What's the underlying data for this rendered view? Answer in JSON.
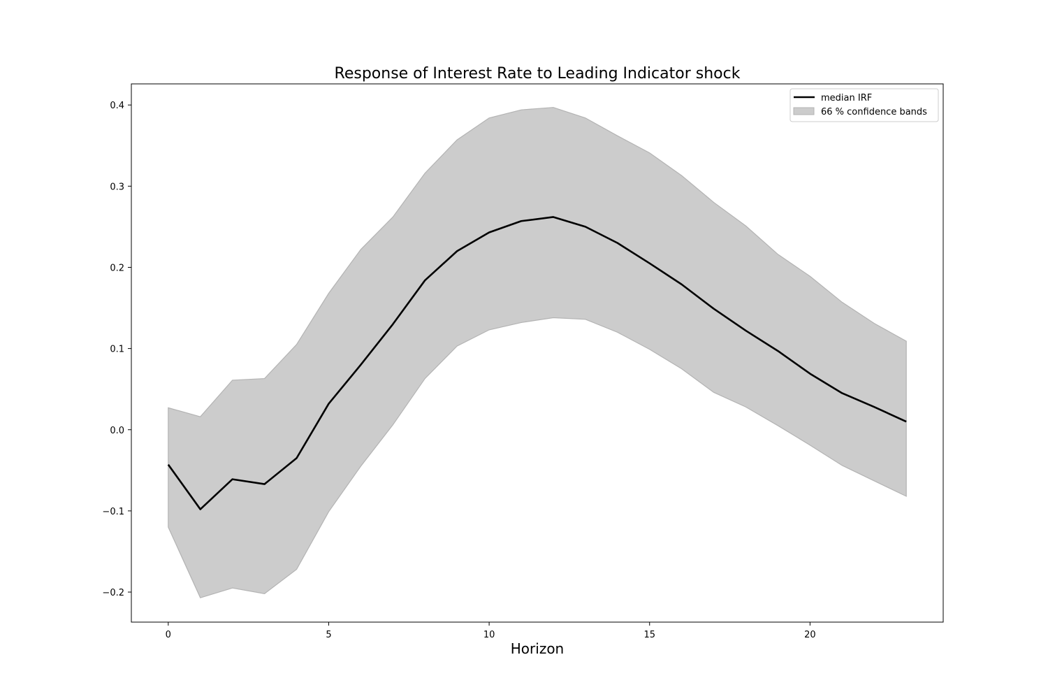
{
  "chart_data": {
    "type": "line",
    "title": "Response of Interest Rate to Leading Indicator shock",
    "xlabel": "Horizon",
    "ylabel": "",
    "xlim": [
      -1.15,
      24.15
    ],
    "ylim": [
      -0.237,
      0.426
    ],
    "xticks": [
      0,
      5,
      10,
      15,
      20
    ],
    "xtick_labels": [
      "0",
      "5",
      "10",
      "15",
      "20"
    ],
    "yticks": [
      -0.2,
      -0.1,
      0.0,
      0.1,
      0.2,
      0.3,
      0.4
    ],
    "ytick_labels": [
      "−0.2",
      "−0.1",
      "0.0",
      "0.1",
      "0.2",
      "0.3",
      "0.4"
    ],
    "grid": false,
    "legend_position": "top-right",
    "x": [
      0,
      1,
      2,
      3,
      4,
      5,
      6,
      7,
      8,
      9,
      10,
      11,
      12,
      13,
      14,
      15,
      16,
      17,
      18,
      19,
      20,
      21,
      22,
      23
    ],
    "series": [
      {
        "name": "median IRF",
        "kind": "line",
        "color": "#000000",
        "values": [
          -0.043,
          -0.098,
          -0.061,
          -0.067,
          -0.035,
          0.032,
          0.08,
          0.13,
          0.184,
          0.22,
          0.243,
          0.257,
          0.262,
          0.25,
          0.23,
          0.205,
          0.179,
          0.149,
          0.122,
          0.097,
          0.069,
          0.045,
          0.028,
          0.01
        ]
      },
      {
        "name": "66 % confidence bands",
        "kind": "band",
        "color": "#cccccc",
        "edge_color": "#b3b3b3",
        "lower": [
          -0.12,
          -0.207,
          -0.195,
          -0.202,
          -0.172,
          -0.101,
          -0.045,
          0.006,
          0.063,
          0.103,
          0.123,
          0.132,
          0.138,
          0.136,
          0.12,
          0.099,
          0.075,
          0.046,
          0.028,
          0.005,
          -0.019,
          -0.044,
          -0.063,
          -0.082
        ],
        "upper": [
          0.027,
          0.016,
          0.061,
          0.063,
          0.105,
          0.168,
          0.222,
          0.262,
          0.316,
          0.357,
          0.384,
          0.394,
          0.397,
          0.384,
          0.362,
          0.341,
          0.313,
          0.28,
          0.251,
          0.216,
          0.189,
          0.157,
          0.131,
          0.109
        ]
      }
    ]
  }
}
